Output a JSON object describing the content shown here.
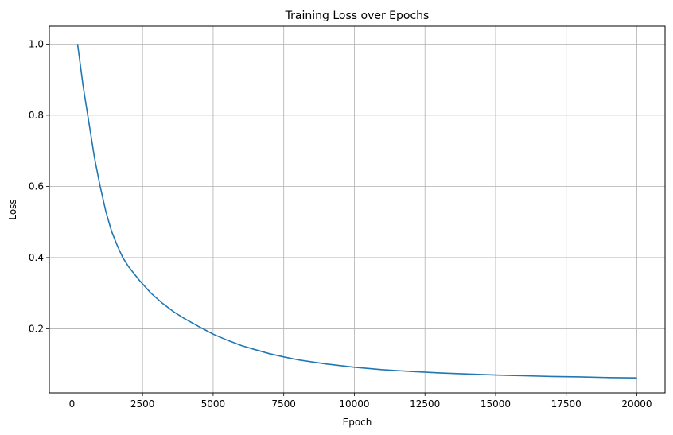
{
  "chart_data": {
    "type": "line",
    "title": "Training Loss over Epochs",
    "xlabel": "Epoch",
    "ylabel": "Loss",
    "xlim": [
      -800,
      21000
    ],
    "ylim": [
      0.02,
      1.05
    ],
    "grid": true,
    "legend": "none",
    "x_ticks": [
      {
        "value": 0,
        "label": "0"
      },
      {
        "value": 2500,
        "label": "2500"
      },
      {
        "value": 5000,
        "label": "5000"
      },
      {
        "value": 7500,
        "label": "7500"
      },
      {
        "value": 10000,
        "label": "10000"
      },
      {
        "value": 12500,
        "label": "12500"
      },
      {
        "value": 15000,
        "label": "15000"
      },
      {
        "value": 17500,
        "label": "17500"
      },
      {
        "value": 20000,
        "label": "20000"
      }
    ],
    "y_ticks": [
      {
        "value": 0.2,
        "label": "0.2"
      },
      {
        "value": 0.4,
        "label": "0.4"
      },
      {
        "value": 0.6,
        "label": "0.6"
      },
      {
        "value": 0.8,
        "label": "0.8"
      },
      {
        "value": 1.0,
        "label": "1.0"
      }
    ],
    "series": [
      {
        "color": "#1f77b4",
        "x": [
          200,
          400,
          600,
          800,
          1000,
          1200,
          1400,
          1600,
          1800,
          2000,
          2400,
          2800,
          3200,
          3600,
          4000,
          4500,
          5000,
          5500,
          6000,
          6500,
          7000,
          7500,
          8000,
          9000,
          10000,
          11000,
          12000,
          13000,
          14000,
          15000,
          16000,
          17000,
          18000,
          19000,
          20000
        ],
        "y": [
          1.0,
          0.88,
          0.78,
          0.68,
          0.6,
          0.53,
          0.475,
          0.435,
          0.4,
          0.375,
          0.335,
          0.3,
          0.272,
          0.248,
          0.228,
          0.206,
          0.185,
          0.168,
          0.153,
          0.141,
          0.13,
          0.121,
          0.113,
          0.101,
          0.092,
          0.085,
          0.08,
          0.076,
          0.073,
          0.07,
          0.068,
          0.066,
          0.065,
          0.063,
          0.062
        ]
      }
    ]
  }
}
